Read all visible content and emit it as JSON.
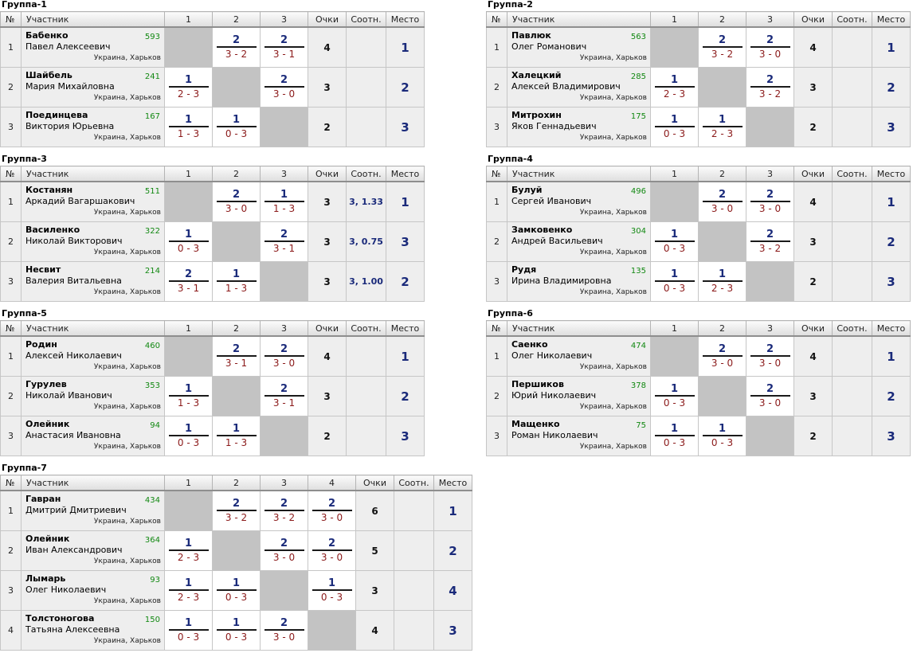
{
  "headers": {
    "num": "№",
    "player": "Участник",
    "points": "Очки",
    "ratio": "Соотн.",
    "place": "Место"
  },
  "groups": [
    {
      "title": "Группа-1",
      "cols": [
        "1",
        "2",
        "3"
      ],
      "rows": [
        {
          "n": "1",
          "last": "Бабенко",
          "first": "Павел Алексеевич",
          "rating": "593",
          "loc": "Украина, Харьков",
          "cells": [
            null,
            {
              "w": "2",
              "s": "3 - 2"
            },
            {
              "w": "2",
              "s": "3 - 1"
            }
          ],
          "pts": "4",
          "ratio": "",
          "place": "1"
        },
        {
          "n": "2",
          "last": "Шайбель",
          "first": "Мария Михайловна",
          "rating": "241",
          "loc": "Украина, Харьков",
          "cells": [
            {
              "w": "1",
              "s": "2 - 3"
            },
            null,
            {
              "w": "2",
              "s": "3 - 0"
            }
          ],
          "pts": "3",
          "ratio": "",
          "place": "2"
        },
        {
          "n": "3",
          "last": "Поединцева",
          "first": "Виктория Юрьевна",
          "rating": "167",
          "loc": "Украина, Харьков",
          "cells": [
            {
              "w": "1",
              "s": "1 - 3"
            },
            {
              "w": "1",
              "s": "0 - 3"
            },
            null
          ],
          "pts": "2",
          "ratio": "",
          "place": "3"
        }
      ]
    },
    {
      "title": "Группа-2",
      "cols": [
        "1",
        "2",
        "3"
      ],
      "rows": [
        {
          "n": "1",
          "last": "Павлюк",
          "first": "Олег Романович",
          "rating": "563",
          "loc": "Украина, Харьков",
          "cells": [
            null,
            {
              "w": "2",
              "s": "3 - 2"
            },
            {
              "w": "2",
              "s": "3 - 0"
            }
          ],
          "pts": "4",
          "ratio": "",
          "place": "1"
        },
        {
          "n": "2",
          "last": "Халецкий",
          "first": "Алексей Владимирович",
          "rating": "285",
          "loc": "Украина, Харьков",
          "cells": [
            {
              "w": "1",
              "s": "2 - 3"
            },
            null,
            {
              "w": "2",
              "s": "3 - 2"
            }
          ],
          "pts": "3",
          "ratio": "",
          "place": "2"
        },
        {
          "n": "3",
          "last": "Митрохин",
          "first": "Яков Геннадьевич",
          "rating": "175",
          "loc": "Украина, Харьков",
          "cells": [
            {
              "w": "1",
              "s": "0 - 3"
            },
            {
              "w": "1",
              "s": "2 - 3"
            },
            null
          ],
          "pts": "2",
          "ratio": "",
          "place": "3"
        }
      ]
    },
    {
      "title": "Группа-3",
      "cols": [
        "1",
        "2",
        "3"
      ],
      "rows": [
        {
          "n": "1",
          "last": "Костанян",
          "first": "Аркадий Вагаршакович",
          "rating": "511",
          "loc": "Украина, Харьков",
          "cells": [
            null,
            {
              "w": "2",
              "s": "3 - 0"
            },
            {
              "w": "1",
              "s": "1 - 3"
            }
          ],
          "pts": "3",
          "ratio": "3, 1.33",
          "place": "1"
        },
        {
          "n": "2",
          "last": "Василенко",
          "first": "Николай Викторович",
          "rating": "322",
          "loc": "Украина, Харьков",
          "cells": [
            {
              "w": "1",
              "s": "0 - 3"
            },
            null,
            {
              "w": "2",
              "s": "3 - 1"
            }
          ],
          "pts": "3",
          "ratio": "3, 0.75",
          "place": "3"
        },
        {
          "n": "3",
          "last": "Несвит",
          "first": "Валерия Витальевна",
          "rating": "214",
          "loc": "Украина, Харьков",
          "cells": [
            {
              "w": "2",
              "s": "3 - 1"
            },
            {
              "w": "1",
              "s": "1 - 3"
            },
            null
          ],
          "pts": "3",
          "ratio": "3, 1.00",
          "place": "2"
        }
      ]
    },
    {
      "title": "Группа-4",
      "cols": [
        "1",
        "2",
        "3"
      ],
      "rows": [
        {
          "n": "1",
          "last": "Булуй",
          "first": "Сергей Иванович",
          "rating": "496",
          "loc": "Украина, Харьков",
          "cells": [
            null,
            {
              "w": "2",
              "s": "3 - 0"
            },
            {
              "w": "2",
              "s": "3 - 0"
            }
          ],
          "pts": "4",
          "ratio": "",
          "place": "1"
        },
        {
          "n": "2",
          "last": "Замковенко",
          "first": "Андрей Васильевич",
          "rating": "304",
          "loc": "Украина, Харьков",
          "cells": [
            {
              "w": "1",
              "s": "0 - 3"
            },
            null,
            {
              "w": "2",
              "s": "3 - 2"
            }
          ],
          "pts": "3",
          "ratio": "",
          "place": "2"
        },
        {
          "n": "3",
          "last": "Рудя",
          "first": "Ирина Владимировна",
          "rating": "135",
          "loc": "Украина, Харьков",
          "cells": [
            {
              "w": "1",
              "s": "0 - 3"
            },
            {
              "w": "1",
              "s": "2 - 3"
            },
            null
          ],
          "pts": "2",
          "ratio": "",
          "place": "3"
        }
      ]
    },
    {
      "title": "Группа-5",
      "cols": [
        "1",
        "2",
        "3"
      ],
      "rows": [
        {
          "n": "1",
          "last": "Родин",
          "first": "Алексей Николаевич",
          "rating": "460",
          "loc": "Украина, Харьков",
          "cells": [
            null,
            {
              "w": "2",
              "s": "3 - 1"
            },
            {
              "w": "2",
              "s": "3 - 0"
            }
          ],
          "pts": "4",
          "ratio": "",
          "place": "1"
        },
        {
          "n": "2",
          "last": "Гурулев",
          "first": "Николай Иванович",
          "rating": "353",
          "loc": "Украина, Харьков",
          "cells": [
            {
              "w": "1",
              "s": "1 - 3"
            },
            null,
            {
              "w": "2",
              "s": "3 - 1"
            }
          ],
          "pts": "3",
          "ratio": "",
          "place": "2"
        },
        {
          "n": "3",
          "last": "Олейник",
          "first": "Анастасия Ивановна",
          "rating": "94",
          "loc": "Украина, Харьков",
          "cells": [
            {
              "w": "1",
              "s": "0 - 3"
            },
            {
              "w": "1",
              "s": "1 - 3"
            },
            null
          ],
          "pts": "2",
          "ratio": "",
          "place": "3"
        }
      ]
    },
    {
      "title": "Группа-6",
      "cols": [
        "1",
        "2",
        "3"
      ],
      "rows": [
        {
          "n": "1",
          "last": "Саенко",
          "first": "Олег Николаевич",
          "rating": "474",
          "loc": "Украина, Харьков",
          "cells": [
            null,
            {
              "w": "2",
              "s": "3 - 0"
            },
            {
              "w": "2",
              "s": "3 - 0"
            }
          ],
          "pts": "4",
          "ratio": "",
          "place": "1"
        },
        {
          "n": "2",
          "last": "Першиков",
          "first": "Юрий Николаевич",
          "rating": "378",
          "loc": "Украина, Харьков",
          "cells": [
            {
              "w": "1",
              "s": "0 - 3"
            },
            null,
            {
              "w": "2",
              "s": "3 - 0"
            }
          ],
          "pts": "3",
          "ratio": "",
          "place": "2"
        },
        {
          "n": "3",
          "last": "Мащенко",
          "first": "Роман Николаевич",
          "rating": "75",
          "loc": "Украина, Харьков",
          "cells": [
            {
              "w": "1",
              "s": "0 - 3"
            },
            {
              "w": "1",
              "s": "0 - 3"
            },
            null
          ],
          "pts": "2",
          "ratio": "",
          "place": "3"
        }
      ]
    },
    {
      "title": "Группа-7",
      "cols": [
        "1",
        "2",
        "3",
        "4"
      ],
      "rows": [
        {
          "n": "1",
          "last": "Гавран",
          "first": "Дмитрий Дмитриевич",
          "rating": "434",
          "loc": "Украина, Харьков",
          "cells": [
            null,
            {
              "w": "2",
              "s": "3 - 2"
            },
            {
              "w": "2",
              "s": "3 - 2"
            },
            {
              "w": "2",
              "s": "3 - 0"
            }
          ],
          "pts": "6",
          "ratio": "",
          "place": "1"
        },
        {
          "n": "2",
          "last": "Олейник",
          "first": "Иван Александрович",
          "rating": "364",
          "loc": "Украина, Харьков",
          "cells": [
            {
              "w": "1",
              "s": "2 - 3"
            },
            null,
            {
              "w": "2",
              "s": "3 - 0"
            },
            {
              "w": "2",
              "s": "3 - 0"
            }
          ],
          "pts": "5",
          "ratio": "",
          "place": "2"
        },
        {
          "n": "3",
          "last": "Лымарь",
          "first": "Олег Николаевич",
          "rating": "93",
          "loc": "Украина, Харьков",
          "cells": [
            {
              "w": "1",
              "s": "2 - 3"
            },
            {
              "w": "1",
              "s": "0 - 3"
            },
            null,
            {
              "w": "1",
              "s": "0 - 3"
            }
          ],
          "pts": "3",
          "ratio": "",
          "place": "4"
        },
        {
          "n": "4",
          "last": "Толстоногова",
          "first": "Татьяна Алексеевна",
          "rating": "150",
          "loc": "Украина, Харьков",
          "cells": [
            {
              "w": "1",
              "s": "0 - 3"
            },
            {
              "w": "1",
              "s": "0 - 3"
            },
            {
              "w": "2",
              "s": "3 - 0"
            },
            null
          ],
          "pts": "4",
          "ratio": "",
          "place": "3"
        }
      ]
    }
  ]
}
